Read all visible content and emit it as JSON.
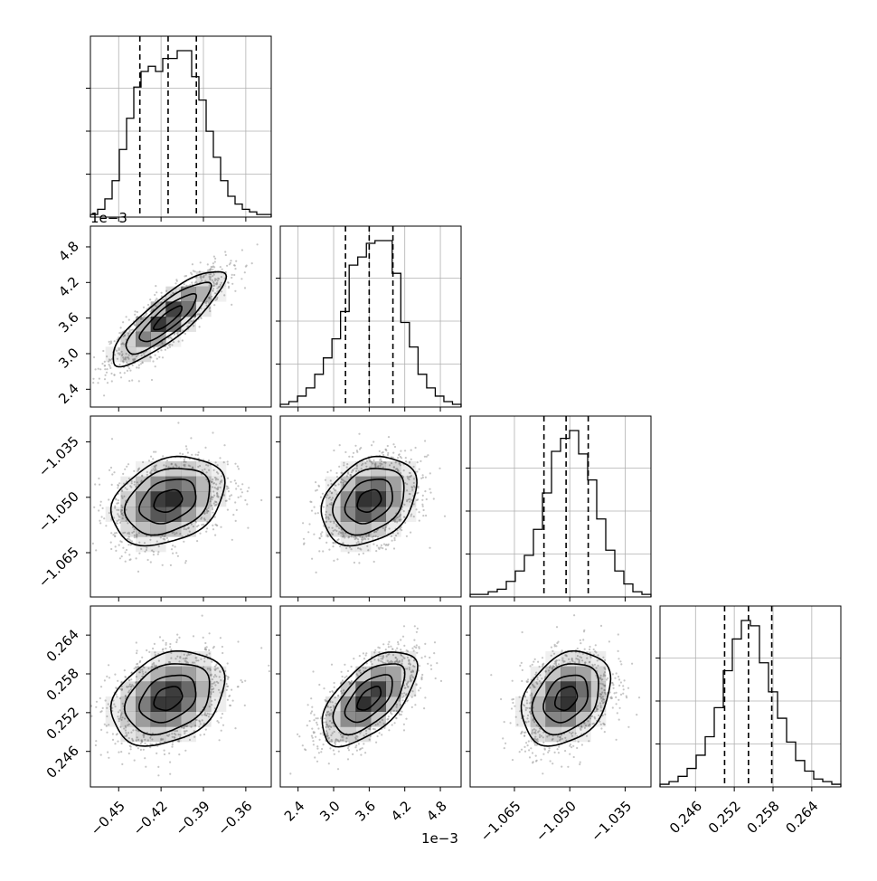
{
  "chart_data": {
    "type": "corner",
    "parameters": [
      {
        "range": [
          -0.47,
          -0.342
        ],
        "ticks": [
          -0.45,
          -0.42,
          -0.39,
          -0.36
        ],
        "tick_labels": [
          "−0.45",
          "−0.42",
          "−0.39",
          "−0.36"
        ],
        "quantiles": [
          -0.435,
          -0.415,
          -0.395
        ],
        "hist": [
          1,
          3,
          7,
          14,
          26,
          38,
          50,
          56,
          58,
          56,
          61,
          61,
          64,
          64,
          54,
          45,
          33,
          23,
          14,
          8,
          5,
          3,
          2,
          1,
          1
        ]
      },
      {
        "range": [
          2.1,
          5.15
        ],
        "ticks": [
          2.4,
          3.0,
          3.6,
          4.2,
          4.8
        ],
        "tick_labels": [
          "2.4",
          "3.0",
          "3.6",
          "4.2",
          "4.8"
        ],
        "offset_label": "1e−3",
        "quantiles": [
          3.2,
          3.6,
          4.0
        ],
        "hist": [
          1,
          2,
          4,
          7,
          12,
          18,
          25,
          35,
          52,
          55,
          60,
          61,
          61,
          49,
          31,
          22,
          12,
          7,
          4,
          2,
          1
        ]
      },
      {
        "range": [
          -1.077,
          -1.028
        ],
        "ticks": [
          -1.065,
          -1.05,
          -1.035
        ],
        "tick_labels": [
          "−1.065",
          "−1.050",
          "−1.035"
        ],
        "quantiles": [
          -1.057,
          -1.051,
          -1.045
        ],
        "hist": [
          1,
          1,
          2,
          3,
          6,
          10,
          16,
          26,
          40,
          56,
          61,
          64,
          55,
          45,
          30,
          18,
          10,
          5,
          2,
          1
        ]
      },
      {
        "range": [
          0.2405,
          0.2685
        ],
        "ticks": [
          0.246,
          0.252,
          0.258,
          0.264
        ],
        "tick_labels": [
          "0.246",
          "0.252",
          "0.258",
          "0.264"
        ],
        "quantiles": [
          0.2505,
          0.2542,
          0.2578
        ],
        "hist": [
          1,
          2,
          4,
          7,
          12,
          19,
          30,
          44,
          56,
          63,
          61,
          47,
          36,
          26,
          17,
          10,
          6,
          3,
          2,
          1
        ]
      }
    ],
    "pair_correlations": {
      "1-0": 0.85,
      "2-0": 0.3,
      "2-1": 0.3,
      "3-0": 0.3,
      "3-1": 0.6,
      "3-2": 0.3
    },
    "corner_offset_label": "1e−3",
    "colors": {
      "line": "#000000",
      "scatter": "#a0a0a0",
      "grid": "#b0b0b0",
      "density": "#000000"
    },
    "grid": true
  }
}
